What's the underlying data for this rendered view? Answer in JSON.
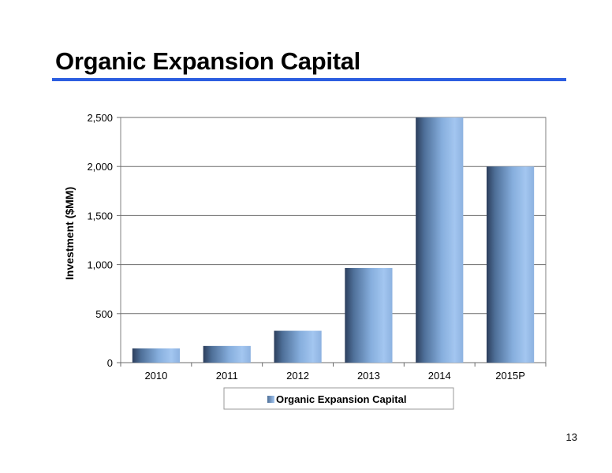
{
  "slide": {
    "title": "Organic Expansion Capital",
    "page_number": "13",
    "accent_color": "#2c5ee0"
  },
  "chart_data": {
    "type": "bar",
    "categories": [
      "2010",
      "2011",
      "2012",
      "2013",
      "2014",
      "2015P"
    ],
    "series": [
      {
        "name": "Organic Expansion Capital",
        "values": [
          145,
          170,
          325,
          965,
          2500,
          2000
        ],
        "color": "#8fb4e3"
      }
    ],
    "ylabel": "Investment ($MM)",
    "xlabel": "",
    "ylim": [
      0,
      2500
    ],
    "yticks": [
      0,
      500,
      1000,
      1500,
      2000,
      2500
    ],
    "ytick_labels": [
      "0",
      "500",
      "1,000",
      "1,500",
      "2,000",
      "2,500"
    ],
    "grid": true,
    "legend_position": "bottom"
  }
}
